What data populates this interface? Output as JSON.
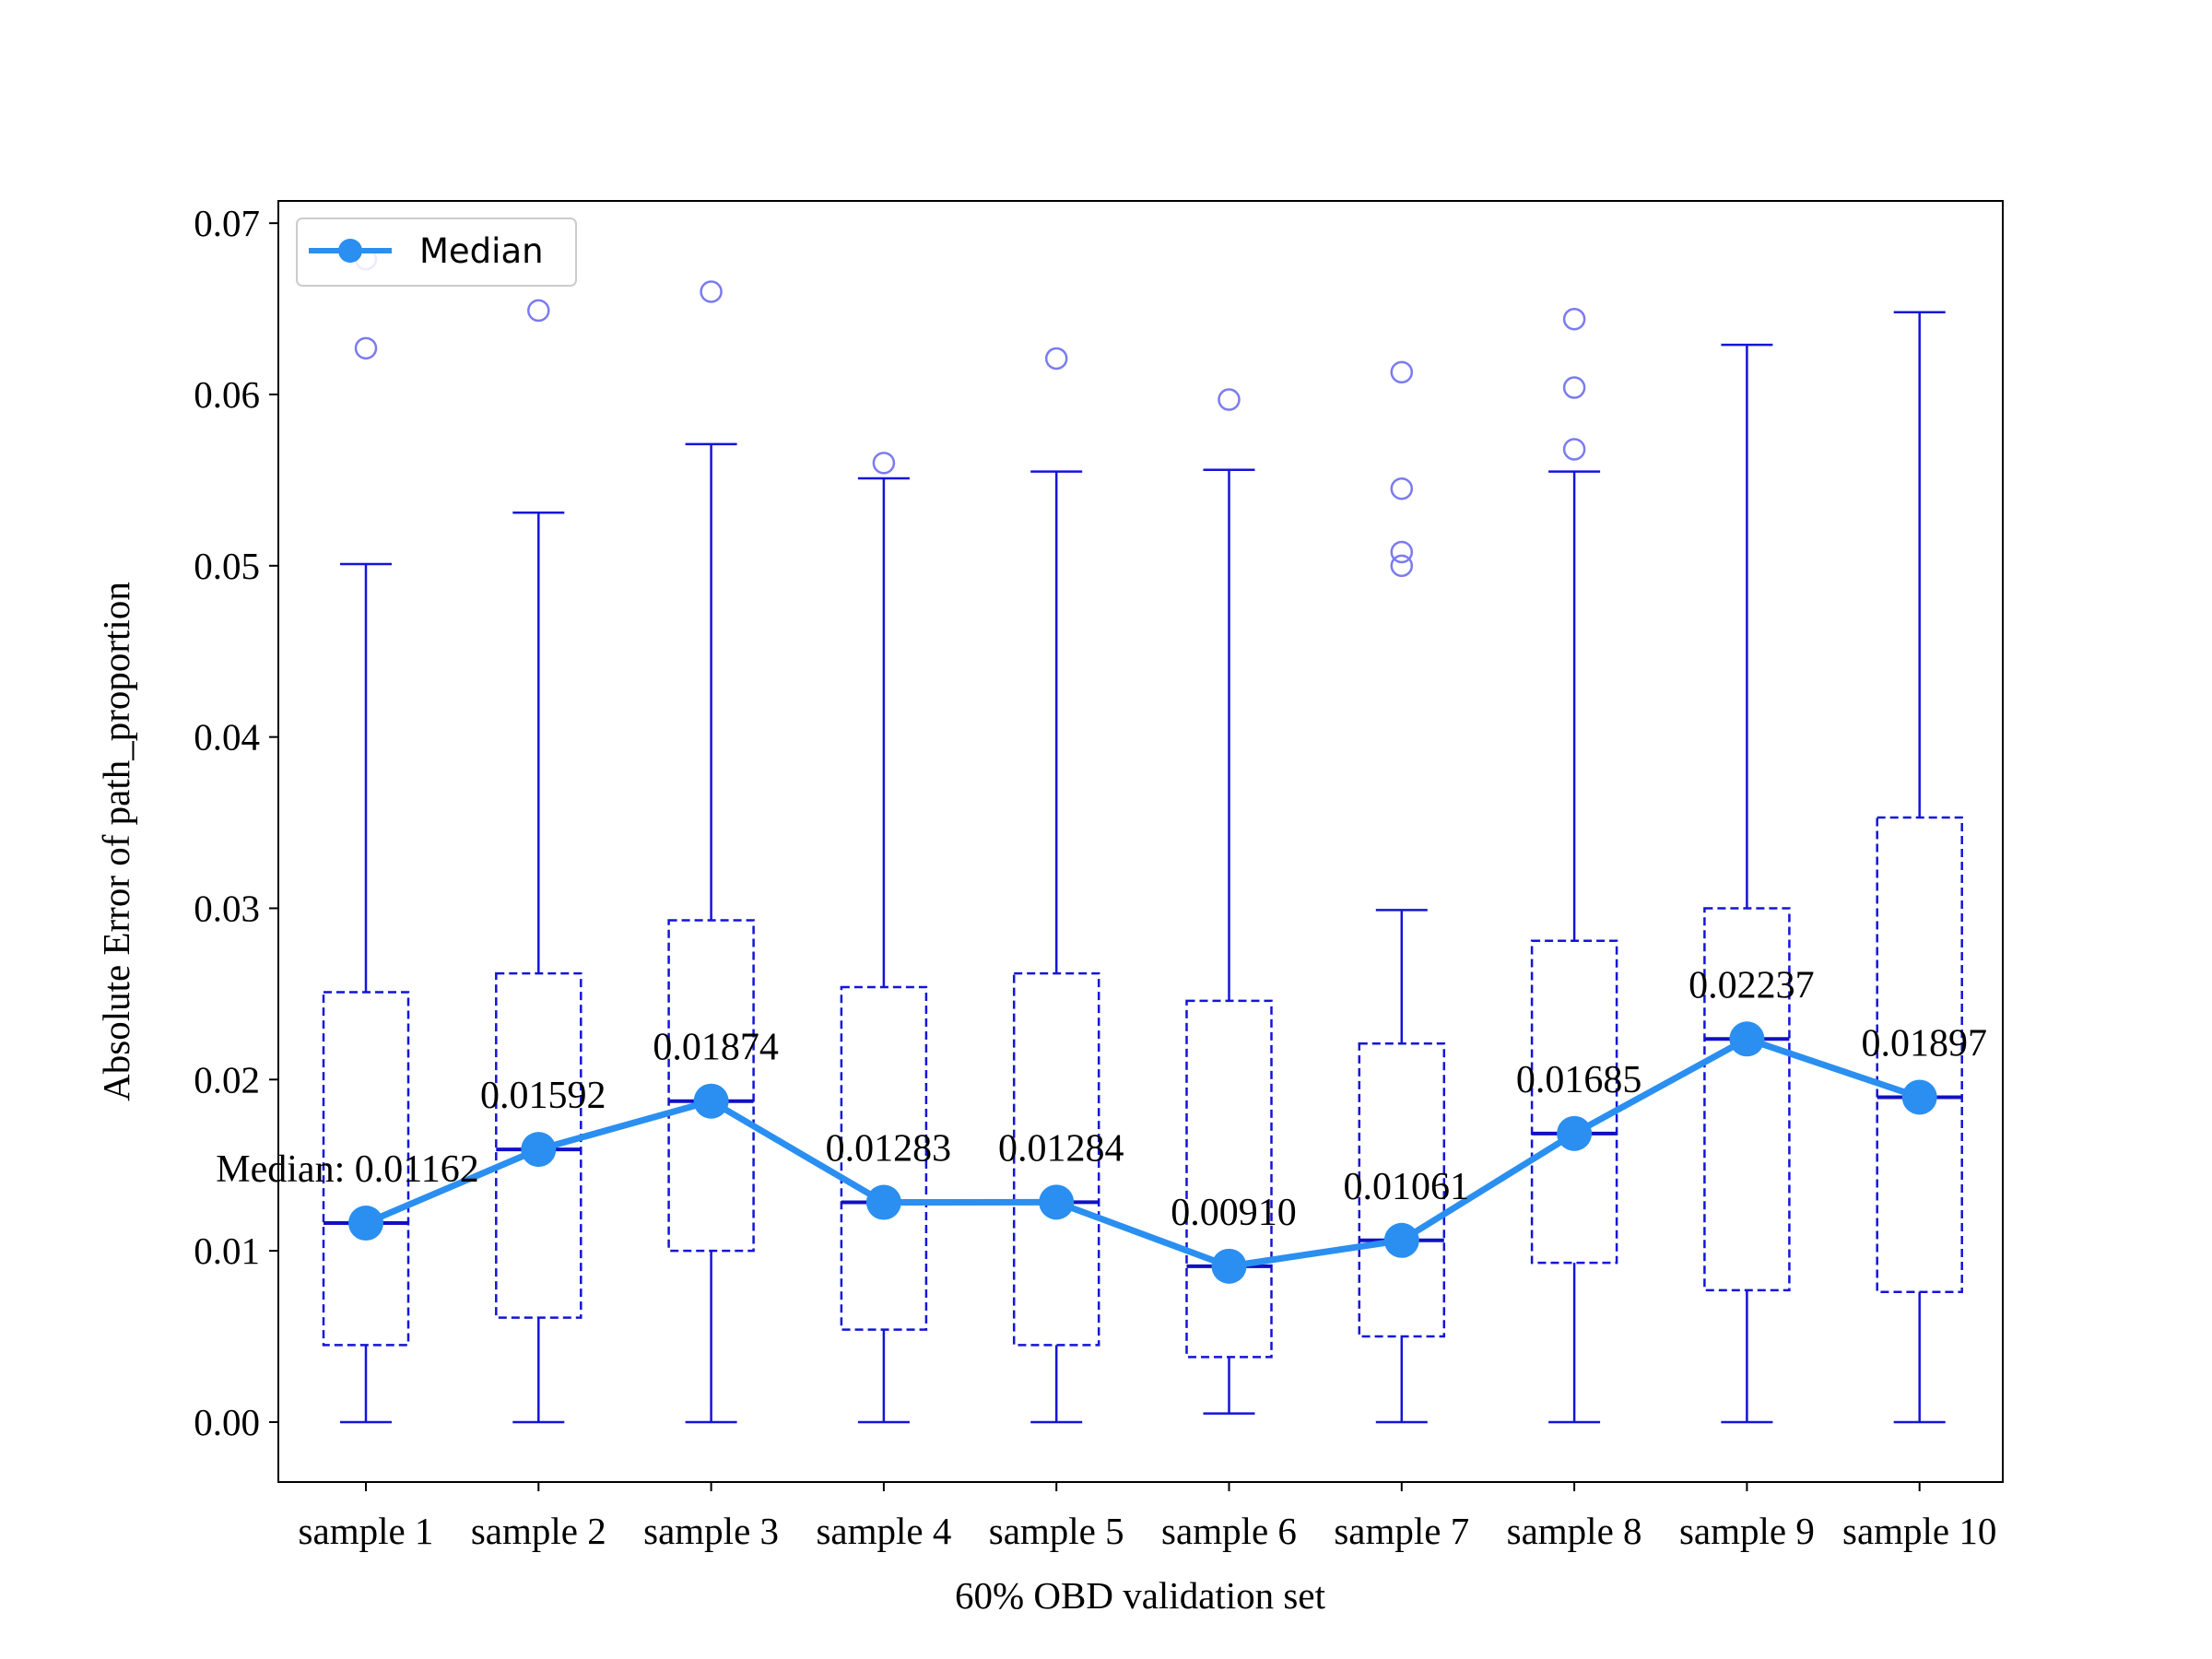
{
  "chart_data": {
    "type": "box",
    "xlabel": "60% OBD validation set",
    "ylabel": "Absolute Error of path_proportion",
    "ylim": [
      -0.0035,
      0.0713
    ],
    "yticks": [
      "0.00",
      "0.01",
      "0.02",
      "0.03",
      "0.04",
      "0.05",
      "0.06",
      "0.07"
    ],
    "ytick_values": [
      0.0,
      0.01,
      0.02,
      0.03,
      0.04,
      0.05,
      0.06,
      0.07
    ],
    "grid": false,
    "legend": {
      "position": "top-left",
      "entries": [
        "Median"
      ]
    },
    "colors": {
      "box": "#1414d8",
      "outlier": "#7b7bf0",
      "median_line": "#2a8ff0"
    },
    "categories": [
      "sample 1",
      "sample 2",
      "sample 3",
      "sample 4",
      "sample 5",
      "sample 6",
      "sample 7",
      "sample 8",
      "sample 9",
      "sample 10"
    ],
    "boxes": [
      {
        "whisker_low": 0.0,
        "q1": 0.0045,
        "median": 0.01162,
        "q3": 0.0251,
        "whisker_high": 0.0501,
        "outliers": [
          0.0627,
          0.0679
        ]
      },
      {
        "whisker_low": 0.0,
        "q1": 0.0061,
        "median": 0.01592,
        "q3": 0.0262,
        "whisker_high": 0.0531,
        "outliers": [
          0.0649
        ]
      },
      {
        "whisker_low": 0.0,
        "q1": 0.01,
        "median": 0.01874,
        "q3": 0.0293,
        "whisker_high": 0.0571,
        "outliers": [
          0.066
        ]
      },
      {
        "whisker_low": 0.0,
        "q1": 0.0054,
        "median": 0.01283,
        "q3": 0.0254,
        "whisker_high": 0.0551,
        "outliers": [
          0.056
        ]
      },
      {
        "whisker_low": 0.0,
        "q1": 0.0045,
        "median": 0.01284,
        "q3": 0.0262,
        "whisker_high": 0.0555,
        "outliers": [
          0.0621
        ]
      },
      {
        "whisker_low": 0.0005,
        "q1": 0.0038,
        "median": 0.0091,
        "q3": 0.0246,
        "whisker_high": 0.0556,
        "outliers": [
          0.0597
        ]
      },
      {
        "whisker_low": 0.0,
        "q1": 0.005,
        "median": 0.01061,
        "q3": 0.0221,
        "whisker_high": 0.0299,
        "outliers": [
          0.05,
          0.0508,
          0.0545,
          0.0613
        ]
      },
      {
        "whisker_low": 0.0,
        "q1": 0.0093,
        "median": 0.01685,
        "q3": 0.0281,
        "whisker_high": 0.0555,
        "outliers": [
          0.0568,
          0.0604,
          0.0644
        ]
      },
      {
        "whisker_low": 0.0,
        "q1": 0.0077,
        "median": 0.02237,
        "q3": 0.03,
        "whisker_high": 0.0629,
        "outliers": []
      },
      {
        "whisker_low": 0.0,
        "q1": 0.0076,
        "median": 0.01897,
        "q3": 0.0353,
        "whisker_high": 0.0648,
        "outliers": []
      }
    ],
    "series": [
      {
        "name": "Median",
        "values": [
          0.01162,
          0.01592,
          0.01874,
          0.01283,
          0.01284,
          0.0091,
          0.01061,
          0.01685,
          0.02237,
          0.01897
        ]
      }
    ],
    "annotations": [
      "Median: 0.01162",
      "0.01592",
      "0.01874",
      "0.01283",
      "0.01284",
      "0.00910",
      "0.01061",
      "0.01685",
      "0.02237",
      "0.01897"
    ]
  }
}
